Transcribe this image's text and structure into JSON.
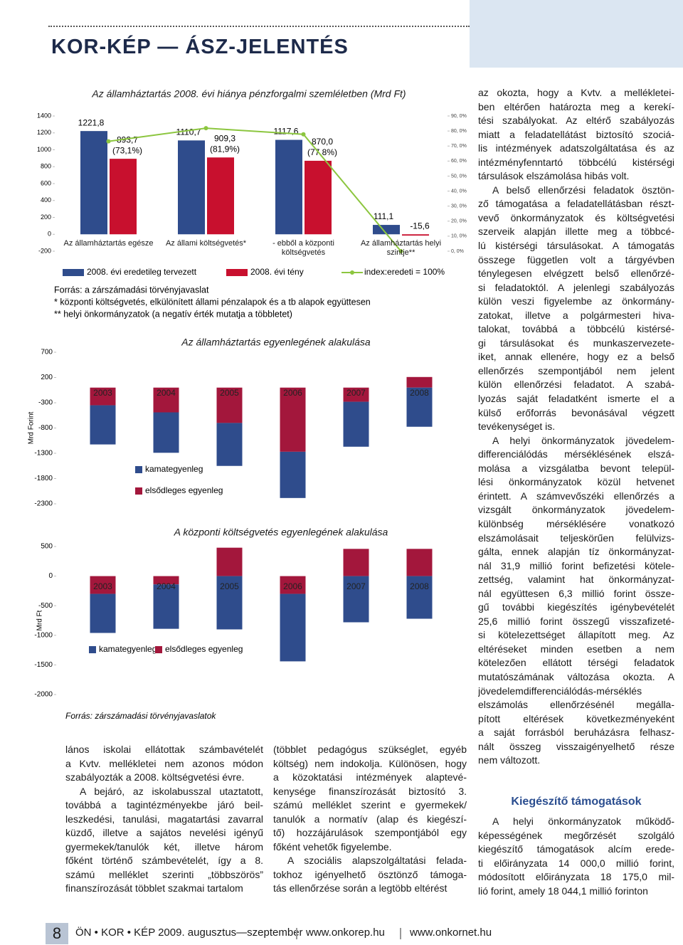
{
  "header": {
    "title": "KOR-KÉP — ÁSZ-JELENTÉS"
  },
  "chart_data": [
    {
      "type": "bar",
      "title": "Az államháztartás 2008. évi hiánya pénzforgalmi szemléletben (Mrd Ft)",
      "categories": [
        "Az államháztartás egésze",
        "Az állami költségvetés*",
        "- ebből a központi költségvetés",
        "Az államháztartás helyi szintje**"
      ],
      "series": [
        {
          "name": "2008. évi eredetileg tervezett",
          "color": "#2f4c8c",
          "values": [
            1221.8,
            1110.7,
            1117.6,
            111.1
          ],
          "value_labels": [
            "1221,8",
            "1110,7",
            "1117,6",
            "111,1"
          ]
        },
        {
          "name": "2008. évi tény",
          "color": "#c8102e",
          "values": [
            893.7,
            909.3,
            870.0,
            -15.6
          ],
          "value_labels": [
            "893,7",
            "909,3",
            "870,0",
            "-15,6"
          ]
        },
        {
          "name": "index:eredeti = 100%",
          "type": "line",
          "axis": "y2",
          "color": "#8cc63f",
          "values": [
            73.1,
            81.9,
            77.8,
            0
          ],
          "value_labels": [
            "(73,1%)",
            "(81,9%)",
            "(77,8%)",
            null
          ]
        }
      ],
      "ylim": [
        -200,
        1400
      ],
      "yticks": [
        -200,
        0,
        200,
        400,
        600,
        800,
        1000,
        1200,
        1400
      ],
      "y2lim": [
        0,
        90
      ],
      "y2ticks": [
        {
          "value": 0,
          "label": "0, 0%"
        },
        {
          "value": 10,
          "label": "10, 0%"
        },
        {
          "value": 20,
          "label": "20, 0%"
        },
        {
          "value": 30,
          "label": "30, 0%"
        },
        {
          "value": 40,
          "label": "40, 0%"
        },
        {
          "value": 50,
          "label": "50, 0%"
        },
        {
          "value": 60,
          "label": "60, 0%"
        },
        {
          "value": 70,
          "label": "70, 0%"
        },
        {
          "value": 80,
          "label": "80, 0%"
        },
        {
          "value": 90,
          "label": "90, 0%"
        }
      ],
      "notes": [
        "Forrás: a zárszámadási törvényjavaslat",
        "* központi költségvetés, elkülönített állami pénzalapok és a tb alapok együttesen",
        "** helyi önkormányzatok (a negatív érték mutatja a többletet)"
      ]
    },
    {
      "type": "bar",
      "stacked": true,
      "title": "Az államháztartás egyenlegének alakulása",
      "y_label": "Mrd Forint",
      "categories": [
        "2003",
        "2004",
        "2005",
        "2006",
        "2007",
        "2008"
      ],
      "series": [
        {
          "name": "kamategyenleg",
          "color": "#2f4c8c",
          "values": [
            -775,
            -800,
            -850,
            -915,
            -890,
            -775
          ]
        },
        {
          "name": "elsődleges egyenleg",
          "color": "#a3173c",
          "values": [
            -350,
            -490,
            -700,
            -1270,
            -280,
            210
          ]
        }
      ],
      "ylim": [
        -2300,
        700
      ],
      "yticks": [
        700,
        200,
        -300,
        -800,
        -1300,
        -1800,
        -2300
      ]
    },
    {
      "type": "bar",
      "stacked": true,
      "title": "A központi költségvetés egyenlegének alakulása",
      "y_label": "Mrd Ft",
      "categories": [
        "2003",
        "2004",
        "2005",
        "2006",
        "2007",
        "2008"
      ],
      "series": [
        {
          "name": "kamategyenleg",
          "color": "#2f4c8c",
          "values": [
            -660,
            -750,
            -900,
            -1140,
            -780,
            -720
          ]
        },
        {
          "name": "elsődleges egyenleg",
          "color": "#a3173c",
          "values": [
            -300,
            -140,
            480,
            -300,
            460,
            460
          ]
        }
      ],
      "ylim": [
        -2000,
        500
      ],
      "yticks": [
        500,
        0,
        -500,
        -1000,
        -1500,
        -2000
      ],
      "source": "Forrás: zárszámadási törvényjavaslatok"
    }
  ],
  "columns": {
    "left": [
      [
        "lános iskolai ellátottak számbavételét",
        "a Kvtv. mellékletei nem azonos módon",
        "szabályozták a 2008. költségvetési évre."
      ],
      [
        "A bejáró, az iskolabusszal utaztatott,",
        "továbbá a tagintézményekbe járó beil-",
        "leszkedési, tanulási, magatartási zavarral",
        "küzdő, illetve a sajátos nevelési igényű",
        "gyermekek/tanulók két, illetve három",
        "főként történő számbevételét, így a 8.",
        "számú melléklet szerinti „többszörös”",
        "finanszírozását többlet szakmai tartalom"
      ]
    ],
    "middle": [
      [
        "(többlet pedagógus szükséglet, egyéb",
        "költség) nem indokolja. Különösen, hogy",
        "a közoktatási intézmények alaptevé-",
        "kenysége finanszírozását biztosító 3.",
        "számú melléklet szerint e gyermekek/",
        "tanulók a normatív (alap és kiegészí-",
        "tő) hozzájárulások szempontjából egy",
        "főként vehetők figyelembe."
      ],
      [
        "A szociális alapszolgáltatási felada-",
        "tokhoz igényelhető ösztönző támoga-",
        "tás ellenőrzése során a legtöbb eltérést"
      ]
    ],
    "right_top": [
      [
        "az okozta, hogy a Kvtv. a mellékletei-",
        "ben eltérően határozta meg a kerekí-",
        "tési szabályokat. Az eltérő szabályozás",
        "miatt a feladatellátást biztosító szociá-",
        "lis intézmények adatszolgáltatása és az",
        "intézményfenntartó többcélú kistérségi",
        "társulások elszámolása hibás volt."
      ],
      [
        "A belső ellenőrzési feladatok ösztön-",
        "ző támogatása a feladatellátásban részt-",
        "vevő önkormányzatok és költségvetési",
        "szerveik alapján illette meg a többcé-",
        "lú kistérségi társulásokat. A támogatás",
        "összege független volt a tárgyévben",
        "ténylegesen elvégzett belső ellenőrzé-",
        "si feladatoktól. A jelenlegi szabályozás",
        "külön veszi figyelembe az önkormány-",
        "zatokat, illetve a polgármesteri hiva-",
        "talokat, továbbá a többcélú kistérsé-",
        "gi társulásokat és munkaszervezete-",
        "iket, annak ellenére, hogy ez a belső",
        "ellenőrzés szempontjából nem jelent",
        "külön ellenőrzési feladatot. A szabá-",
        "lyozás saját feladatként ismerte el a",
        "külső erőforrás bevonásával végzett",
        "tevékenységet is."
      ],
      [
        "A helyi önkormányzatok jövedelem-",
        "differenciálódás mérséklésének elszá-",
        "molása a vizsgálatba bevont települ-",
        "lési önkormányzatok közül hetvenet",
        "érintett. A számvevőszéki ellenőrzés a",
        "vizsgált önkormányzatok jövedelem-",
        "különbség mérséklésére vonatkozó",
        "elszámolásait teljeskörűen felülvizs-",
        "gálta, ennek alapján tíz önkormányzat-",
        "nál 31,9 millió forint befizetési kötele-",
        "zettség, valamint hat önkormányzat-",
        "nál együttesen 6,3 millió forint össze-",
        "gű további kiegészítés igénybevételét",
        "25,6 millió forint összegű visszafizeté-",
        "si kötelezettséget állapított meg. Az",
        "eltéréseket minden esetben a nem",
        "kötelezően ellátott térségi feladatok",
        "mutatószámának változása okozta. A",
        "jövedelemdifferenciálódás-mérséklés",
        "elszámolás ellenőrzésénél megálla-",
        "pított eltérések következményeként",
        "a saját forrásból beruházásra felhasz-",
        "nált összeg visszaigényelhető része",
        "nem változott."
      ]
    ],
    "right_heading": "Kiegészítő támogatások",
    "right_bottom": [
      [
        "A helyi önkormányzatok működő-",
        "képességének megőrzését szolgáló",
        "kiegészítő támogatások alcím erede-",
        "ti előirányzata 14 000,0 millió forint,",
        "módosított előirányzata 18 175,0 mil-",
        "lió forint, amely 18 044,1 millió forinton"
      ]
    ]
  },
  "footer": {
    "page": "8",
    "publication": "ÖN • KOR • KÉP 2009. augusztus—szeptember",
    "links": [
      "www.onkorep.hu",
      "www.onkornet.hu"
    ]
  }
}
